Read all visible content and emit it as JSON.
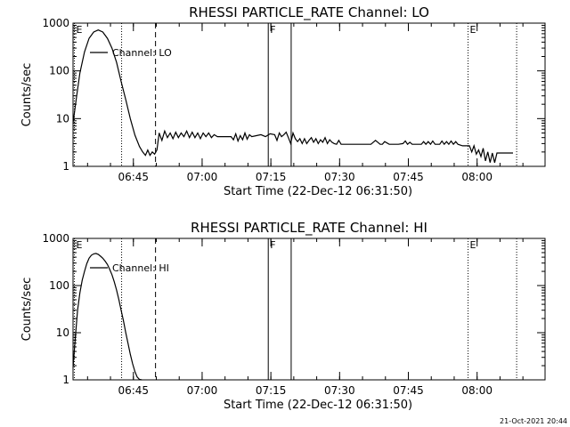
{
  "footer_timestamp": "21-Oct-2021 20:44",
  "chart_data": [
    {
      "type": "line",
      "title": "RHESSI PARTICLE_RATE Channel: LO",
      "xlabel": "Start Time (22-Dec-12 06:31:50)",
      "ylabel": "Counts/sec",
      "yscale": "log",
      "ylim": [
        1,
        1000
      ],
      "xlim_minutes": [
        0,
        103
      ],
      "x_ticks": [
        {
          "t": 13.17,
          "label": "06:45"
        },
        {
          "t": 28.17,
          "label": "07:00"
        },
        {
          "t": 43.17,
          "label": "07:15"
        },
        {
          "t": 58.17,
          "label": "07:30"
        },
        {
          "t": 73.17,
          "label": "07:45"
        },
        {
          "t": 88.17,
          "label": "08:00"
        }
      ],
      "y_ticks": [
        {
          "v": 1,
          "label": "1"
        },
        {
          "v": 10,
          "label": "10"
        },
        {
          "v": 100,
          "label": "100"
        },
        {
          "v": 1000,
          "label": "1000"
        }
      ],
      "legend": {
        "label": "Channel: LO",
        "position": "top-left"
      },
      "markers": [
        {
          "t": 0.3,
          "style": "dotted",
          "label": "E"
        },
        {
          "t": 10.6,
          "style": "dotted",
          "label": ""
        },
        {
          "t": 18.0,
          "style": "dashed",
          "label": ""
        },
        {
          "t": 42.6,
          "style": "solid",
          "label": "F"
        },
        {
          "t": 47.6,
          "style": "solid",
          "label": ""
        },
        {
          "t": 86.2,
          "style": "dotted",
          "label": "E"
        },
        {
          "t": 96.8,
          "style": "dotted",
          "label": ""
        }
      ],
      "series": [
        {
          "x": [
            0,
            0.8,
            1.5,
            2.5,
            3.5,
            4.5,
            5.5,
            6.5,
            7.5,
            8.5,
            9.5,
            10.5,
            11.5,
            12.5,
            13.5,
            14.5,
            15.2,
            15.8,
            16.3,
            16.8,
            17.3,
            17.8,
            18.3,
            18.8,
            19.4,
            20.0,
            20.6,
            21.2,
            21.8,
            22.4,
            23.0,
            23.6,
            24.2,
            24.8,
            25.4,
            26.0,
            26.6,
            27.2,
            27.8,
            28.4,
            29.0,
            29.6,
            30.2,
            30.8,
            31.5,
            32.5,
            33.5,
            34.5,
            35.0,
            35.5,
            36.0,
            36.5,
            37.0,
            37.5,
            38.0,
            38.5,
            39.0,
            40.0,
            41.0,
            42.0,
            43.0,
            44.0,
            44.5,
            45.0,
            45.5,
            46.0,
            46.5,
            47.0,
            47.5,
            48.0,
            48.5,
            49.0,
            49.5,
            50.0,
            50.5,
            51.0,
            51.5,
            52.0,
            52.5,
            53.0,
            53.5,
            54.0,
            54.5,
            55.0,
            55.5,
            56.0,
            56.5,
            57.0,
            57.5,
            58.0,
            58.5,
            59.0,
            60.0,
            61.0,
            62.0,
            63.0,
            64.0,
            65.0,
            66.0,
            67.0,
            67.5,
            68.0,
            69.0,
            70.0,
            71.0,
            72.0,
            72.5,
            73.0,
            73.5,
            74.0,
            75.0,
            76.0,
            76.5,
            77.0,
            77.5,
            78.0,
            78.5,
            79.0,
            80.0,
            80.5,
            81.0,
            81.5,
            82.0,
            82.5,
            83.0,
            83.5,
            84.0,
            85.0,
            86.0,
            86.5,
            87.0,
            87.5,
            88.0,
            88.5,
            89.0,
            89.5,
            90.0,
            90.5,
            91.0,
            91.5,
            92.0,
            92.5,
            93.0,
            94.0,
            95.0,
            96.0
          ],
          "y": [
            8,
            30,
            90,
            250,
            480,
            650,
            720,
            650,
            480,
            300,
            150,
            60,
            25,
            10,
            4.5,
            2.6,
            2.0,
            1.7,
            2.2,
            1.7,
            2.0,
            1.8,
            2.2,
            5.0,
            3.5,
            5.5,
            4.0,
            5.0,
            3.8,
            5.2,
            4.0,
            5.0,
            4.2,
            5.5,
            4.0,
            5.2,
            4.0,
            5.0,
            3.8,
            5.0,
            4.2,
            5.0,
            4.0,
            4.6,
            4.2,
            4.2,
            4.2,
            4.2,
            3.6,
            4.8,
            3.4,
            4.4,
            3.6,
            5.0,
            3.7,
            4.6,
            4.2,
            4.4,
            4.6,
            4.2,
            4.8,
            4.6,
            3.5,
            5.0,
            4.2,
            4.6,
            5.2,
            4.0,
            3.0,
            5.0,
            3.8,
            3.3,
            3.8,
            3.0,
            3.8,
            3.0,
            3.5,
            4.0,
            3.2,
            3.8,
            3.0,
            3.6,
            3.2,
            4.0,
            3.0,
            3.6,
            3.2,
            3.0,
            2.9,
            3.5,
            2.9,
            2.9,
            2.9,
            2.9,
            2.9,
            2.9,
            2.9,
            2.9,
            3.5,
            2.9,
            2.9,
            3.3,
            2.9,
            2.9,
            2.9,
            3.0,
            3.4,
            2.9,
            3.2,
            2.9,
            2.9,
            2.9,
            3.3,
            2.9,
            3.3,
            2.9,
            3.4,
            2.9,
            2.9,
            3.4,
            2.9,
            3.3,
            2.9,
            3.4,
            2.9,
            3.3,
            2.9,
            2.7,
            2.7,
            2.7,
            2.0,
            2.7,
            1.8,
            2.2,
            1.6,
            2.4,
            1.3,
            2.0,
            1.2,
            1.9,
            1.2,
            1.9,
            1.9,
            1.9,
            1.9,
            1.9
          ]
        }
      ]
    },
    {
      "type": "line",
      "title": "RHESSI PARTICLE_RATE Channel: HI",
      "xlabel": "Start Time (22-Dec-12 06:31:50)",
      "ylabel": "Counts/sec",
      "yscale": "log",
      "ylim": [
        1,
        1000
      ],
      "xlim_minutes": [
        0,
        103
      ],
      "x_ticks": [
        {
          "t": 13.17,
          "label": "06:45"
        },
        {
          "t": 28.17,
          "label": "07:00"
        },
        {
          "t": 43.17,
          "label": "07:15"
        },
        {
          "t": 58.17,
          "label": "07:30"
        },
        {
          "t": 73.17,
          "label": "07:45"
        },
        {
          "t": 88.17,
          "label": "08:00"
        }
      ],
      "y_ticks": [
        {
          "v": 1,
          "label": "1"
        },
        {
          "v": 10,
          "label": "10"
        },
        {
          "v": 100,
          "label": "100"
        },
        {
          "v": 1000,
          "label": "1000"
        }
      ],
      "legend": {
        "label": "Channel: HI",
        "position": "top-left"
      },
      "markers": [
        {
          "t": 0.3,
          "style": "dotted",
          "label": "E"
        },
        {
          "t": 10.6,
          "style": "dotted",
          "label": ""
        },
        {
          "t": 18.0,
          "style": "dashed",
          "label": ""
        },
        {
          "t": 42.6,
          "style": "solid",
          "label": "F"
        },
        {
          "t": 47.6,
          "style": "solid",
          "label": ""
        },
        {
          "t": 86.2,
          "style": "dotted",
          "label": "E"
        },
        {
          "t": 96.8,
          "style": "dotted",
          "label": ""
        }
      ],
      "series": [
        {
          "x": [
            0,
            0.5,
            1.0,
            1.5,
            2.0,
            2.5,
            3.0,
            3.5,
            4.0,
            4.5,
            5.0,
            5.5,
            6.0,
            6.5,
            7.0,
            7.5,
            8.0,
            8.5,
            9.0,
            9.5,
            10.0,
            10.5,
            11.0,
            11.5,
            12.0,
            12.5,
            13.0,
            13.5,
            14.0,
            14.5,
            15.0
          ],
          "y": [
            1.8,
            8,
            30,
            70,
            130,
            200,
            290,
            380,
            440,
            470,
            480,
            460,
            420,
            380,
            330,
            280,
            220,
            170,
            120,
            80,
            50,
            30,
            18,
            10,
            6,
            3.5,
            2.2,
            1.5,
            1.15,
            1.02,
            1.0
          ]
        }
      ]
    }
  ]
}
